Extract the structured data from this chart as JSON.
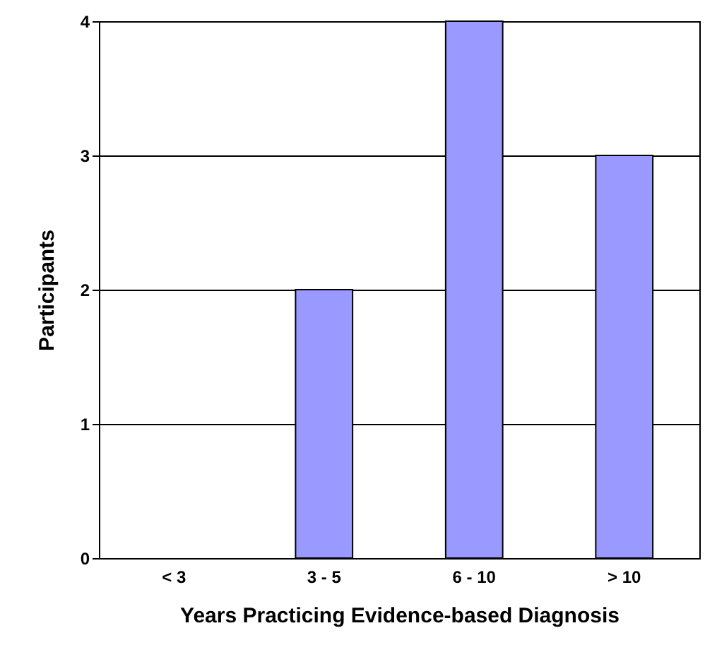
{
  "chart_data": {
    "type": "bar",
    "xlabel": "Years Practicing Evidence-based Diagnosis",
    "ylabel": "Participants",
    "categories": [
      "< 3",
      "3 - 5",
      "6 - 10",
      "> 10"
    ],
    "values": [
      0,
      2,
      4,
      3
    ],
    "color": "#9999ff",
    "ylim": [
      0,
      4
    ],
    "yticks": [
      0,
      1,
      2,
      3,
      4
    ],
    "grid": "y"
  }
}
